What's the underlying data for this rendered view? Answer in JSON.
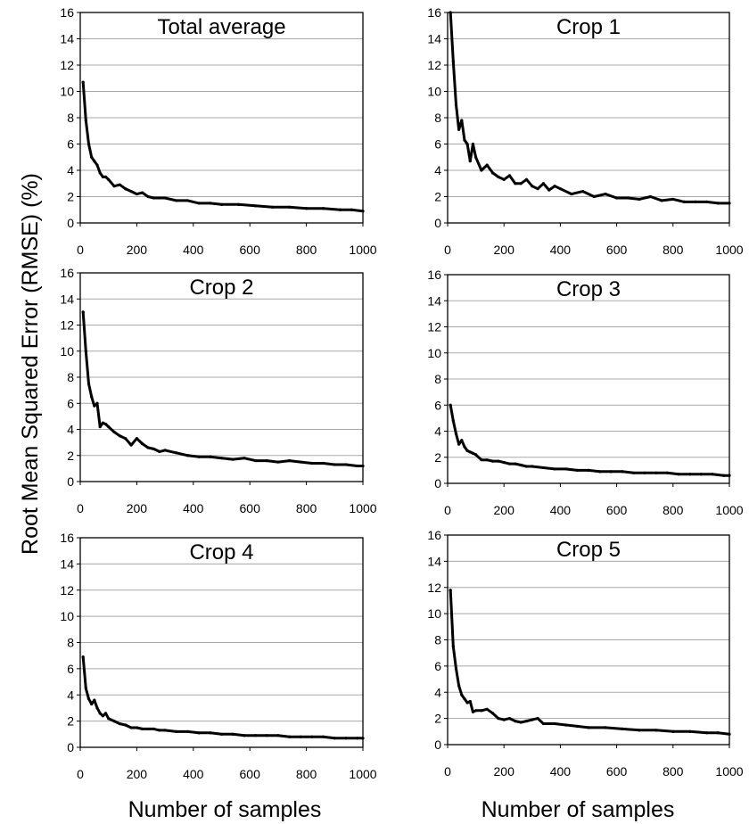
{
  "figure": {
    "ylabel": "Root Mean Squared Error (RMSE) (%)",
    "xlabels": [
      "Number of samples",
      "Number of samples"
    ]
  },
  "chart_data": [
    {
      "type": "line",
      "title": "Total average",
      "xlim": [
        0,
        1000
      ],
      "ylim": [
        0,
        16
      ],
      "xticks": [
        0,
        200,
        400,
        600,
        800,
        1000
      ],
      "yticks": [
        0,
        2,
        4,
        6,
        8,
        10,
        12,
        14,
        16
      ],
      "grid": true,
      "series": [
        {
          "x": [
            10,
            20,
            30,
            40,
            50,
            60,
            70,
            80,
            90,
            100,
            120,
            140,
            160,
            180,
            200,
            220,
            240,
            260,
            280,
            300,
            340,
            380,
            420,
            460,
            500,
            560,
            620,
            680,
            740,
            800,
            860,
            920,
            960,
            1000
          ],
          "y": [
            10.7,
            7.8,
            6.0,
            5.0,
            4.7,
            4.4,
            3.8,
            3.5,
            3.5,
            3.3,
            2.8,
            2.9,
            2.6,
            2.4,
            2.2,
            2.3,
            2.0,
            1.9,
            1.9,
            1.9,
            1.7,
            1.7,
            1.5,
            1.5,
            1.4,
            1.4,
            1.3,
            1.2,
            1.2,
            1.1,
            1.1,
            1.0,
            1.0,
            0.9
          ]
        }
      ]
    },
    {
      "type": "line",
      "title": "Crop 1",
      "xlim": [
        0,
        1000
      ],
      "ylim": [
        0,
        16
      ],
      "xticks": [
        0,
        200,
        400,
        600,
        800,
        1000
      ],
      "yticks": [
        0,
        2,
        4,
        6,
        8,
        10,
        12,
        14,
        16
      ],
      "grid": true,
      "series": [
        {
          "x": [
            10,
            20,
            30,
            40,
            50,
            60,
            70,
            80,
            90,
            100,
            120,
            140,
            160,
            180,
            200,
            220,
            240,
            260,
            280,
            300,
            320,
            340,
            360,
            380,
            400,
            440,
            480,
            520,
            560,
            600,
            640,
            680,
            720,
            760,
            800,
            840,
            880,
            920,
            960,
            1000
          ],
          "y": [
            16.0,
            12.3,
            9.0,
            7.1,
            7.8,
            6.3,
            6.0,
            4.7,
            6.0,
            5.0,
            4.0,
            4.4,
            3.8,
            3.5,
            3.3,
            3.6,
            3.0,
            3.0,
            3.3,
            2.8,
            2.6,
            3.0,
            2.5,
            2.8,
            2.6,
            2.2,
            2.4,
            2.0,
            2.2,
            1.9,
            1.9,
            1.8,
            2.0,
            1.7,
            1.8,
            1.6,
            1.6,
            1.6,
            1.5,
            1.5
          ]
        }
      ]
    },
    {
      "type": "line",
      "title": "Crop 2",
      "xlim": [
        0,
        1000
      ],
      "ylim": [
        0,
        16
      ],
      "xticks": [
        0,
        200,
        400,
        600,
        800,
        1000
      ],
      "yticks": [
        0,
        2,
        4,
        6,
        8,
        10,
        12,
        14,
        16
      ],
      "grid": true,
      "series": [
        {
          "x": [
            10,
            20,
            30,
            40,
            50,
            60,
            70,
            80,
            90,
            100,
            120,
            140,
            160,
            180,
            200,
            220,
            240,
            260,
            280,
            300,
            340,
            380,
            420,
            460,
            500,
            540,
            580,
            620,
            660,
            700,
            740,
            780,
            820,
            860,
            900,
            940,
            980,
            1000
          ],
          "y": [
            13.0,
            10.0,
            7.5,
            6.5,
            5.8,
            6.0,
            4.2,
            4.5,
            4.4,
            4.2,
            3.8,
            3.5,
            3.3,
            2.8,
            3.3,
            2.9,
            2.6,
            2.5,
            2.3,
            2.4,
            2.2,
            2.0,
            1.9,
            1.9,
            1.8,
            1.7,
            1.8,
            1.6,
            1.6,
            1.5,
            1.6,
            1.5,
            1.4,
            1.4,
            1.3,
            1.3,
            1.2,
            1.2
          ]
        }
      ]
    },
    {
      "type": "line",
      "title": "Crop 3",
      "xlim": [
        0,
        1000
      ],
      "ylim": [
        0,
        16
      ],
      "xticks": [
        0,
        200,
        400,
        600,
        800,
        1000
      ],
      "yticks": [
        0,
        2,
        4,
        6,
        8,
        10,
        12,
        14,
        16
      ],
      "grid": true,
      "series": [
        {
          "x": [
            10,
            20,
            30,
            40,
            50,
            60,
            70,
            80,
            90,
            100,
            120,
            140,
            160,
            180,
            200,
            220,
            240,
            260,
            280,
            300,
            340,
            380,
            420,
            460,
            500,
            540,
            580,
            620,
            660,
            700,
            740,
            780,
            820,
            860,
            900,
            940,
            980,
            1000
          ],
          "y": [
            6.0,
            4.8,
            3.8,
            3.0,
            3.3,
            2.8,
            2.5,
            2.4,
            2.3,
            2.2,
            1.8,
            1.8,
            1.7,
            1.7,
            1.6,
            1.5,
            1.5,
            1.4,
            1.3,
            1.3,
            1.2,
            1.1,
            1.1,
            1.0,
            1.0,
            0.9,
            0.9,
            0.9,
            0.8,
            0.8,
            0.8,
            0.8,
            0.7,
            0.7,
            0.7,
            0.7,
            0.6,
            0.6
          ]
        }
      ]
    },
    {
      "type": "line",
      "title": "Crop 4",
      "xlim": [
        0,
        1000
      ],
      "ylim": [
        0,
        16
      ],
      "xticks": [
        0,
        200,
        400,
        600,
        800,
        1000
      ],
      "yticks": [
        0,
        2,
        4,
        6,
        8,
        10,
        12,
        14,
        16
      ],
      "grid": true,
      "series": [
        {
          "x": [
            10,
            20,
            30,
            40,
            50,
            60,
            70,
            80,
            90,
            100,
            120,
            140,
            160,
            180,
            200,
            220,
            240,
            260,
            280,
            300,
            340,
            380,
            420,
            460,
            500,
            540,
            580,
            620,
            660,
            700,
            740,
            780,
            820,
            860,
            900,
            940,
            980,
            1000
          ],
          "y": [
            6.9,
            4.5,
            3.7,
            3.3,
            3.6,
            3.0,
            2.6,
            2.4,
            2.6,
            2.2,
            2.0,
            1.8,
            1.7,
            1.5,
            1.5,
            1.4,
            1.4,
            1.4,
            1.3,
            1.3,
            1.2,
            1.2,
            1.1,
            1.1,
            1.0,
            1.0,
            0.9,
            0.9,
            0.9,
            0.9,
            0.8,
            0.8,
            0.8,
            0.8,
            0.7,
            0.7,
            0.7,
            0.7
          ]
        }
      ]
    },
    {
      "type": "line",
      "title": "Crop 5",
      "xlim": [
        0,
        1000
      ],
      "ylim": [
        0,
        16
      ],
      "xticks": [
        0,
        200,
        400,
        600,
        800,
        1000
      ],
      "yticks": [
        0,
        2,
        4,
        6,
        8,
        10,
        12,
        14,
        16
      ],
      "grid": true,
      "series": [
        {
          "x": [
            10,
            20,
            30,
            40,
            50,
            60,
            70,
            80,
            90,
            100,
            120,
            140,
            160,
            180,
            200,
            220,
            240,
            260,
            280,
            300,
            320,
            340,
            380,
            420,
            460,
            500,
            560,
            620,
            680,
            740,
            800,
            860,
            920,
            960,
            1000
          ],
          "y": [
            11.8,
            7.5,
            5.8,
            4.5,
            3.8,
            3.5,
            3.2,
            3.3,
            2.5,
            2.6,
            2.6,
            2.7,
            2.4,
            2.0,
            1.9,
            2.0,
            1.8,
            1.7,
            1.8,
            1.9,
            2.0,
            1.6,
            1.6,
            1.5,
            1.4,
            1.3,
            1.3,
            1.2,
            1.1,
            1.1,
            1.0,
            1.0,
            0.9,
            0.9,
            0.8
          ]
        }
      ]
    }
  ]
}
